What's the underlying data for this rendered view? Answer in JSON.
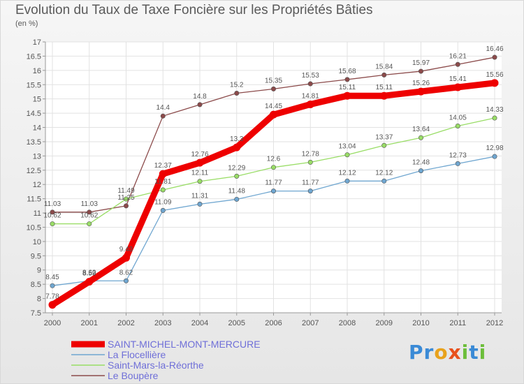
{
  "header": {
    "title": "Evolution du Taux de Taxe Foncière sur les Propriétés Bâties",
    "unit": "(en %)"
  },
  "logo": {
    "text": "Proxiti",
    "letters": [
      "P",
      "r",
      "o",
      "x",
      "i",
      "t",
      "i"
    ]
  },
  "chart_data": {
    "type": "line",
    "title": "Evolution du Taux de Taxe Foncière sur les Propriétés Bâties",
    "ylabel": "(en %)",
    "xlabel": "",
    "x": [
      "2000",
      "2001",
      "2002",
      "2003",
      "2004",
      "2005",
      "2006",
      "2007",
      "2008",
      "2009",
      "2010",
      "2011",
      "2012"
    ],
    "ylim": [
      7.5,
      17
    ],
    "yticks": [
      "7.5",
      "8",
      "8.5",
      "9",
      "9.5",
      "10",
      "10.5",
      "11",
      "11.5",
      "12",
      "12.5",
      "13",
      "13.5",
      "14",
      "14.5",
      "15",
      "15.5",
      "16",
      "16.5",
      "17"
    ],
    "grid": true,
    "legend_position": "bottom-left",
    "series": [
      {
        "name": "SAINT-MICHEL-MONT-MERCURE",
        "color": "#ee0000",
        "values": [
          7.78,
          8.59,
          9.43,
          12.37,
          12.76,
          13.3,
          14.45,
          14.81,
          15.11,
          15.11,
          15.26,
          15.41,
          15.56
        ],
        "labels": [
          "7.78",
          "8.59",
          "9.43",
          "12.37",
          "12.76",
          "13.3",
          "14.45",
          "14.81",
          "15.11",
          "15.11",
          "15.26",
          "15.41",
          "15.56"
        ]
      },
      {
        "name": "La Flocellière",
        "color": "#6fa6d0",
        "values": [
          8.45,
          8.62,
          8.62,
          11.09,
          11.31,
          11.48,
          11.77,
          11.77,
          12.12,
          12.12,
          12.48,
          12.73,
          12.98
        ],
        "labels": [
          "8.45",
          "8.62",
          "8.62",
          "11.09",
          "11.31",
          "11.48",
          "11.77",
          "11.77",
          "12.12",
          "12.12",
          "12.48",
          "12.73",
          "12.98"
        ]
      },
      {
        "name": "Saint-Mars-la-Réorthe",
        "color": "#99dd66",
        "values": [
          10.62,
          10.62,
          11.49,
          11.81,
          12.11,
          12.29,
          12.6,
          12.78,
          13.04,
          13.37,
          13.64,
          14.05,
          14.33
        ],
        "labels": [
          "10.62",
          "10.62",
          "11.49",
          "11.81",
          "12.11",
          "12.29",
          "12.6",
          "12.78",
          "13.04",
          "13.37",
          "13.64",
          "14.05",
          "14.33"
        ]
      },
      {
        "name": "Le Boupère",
        "color": "#8b4a4a",
        "values": [
          11.03,
          11.03,
          11.25,
          14.4,
          14.8,
          15.2,
          15.35,
          15.53,
          15.68,
          15.84,
          15.97,
          16.21,
          16.46
        ],
        "labels": [
          "11.03",
          "11.03",
          "11.25",
          "14.4",
          "14.8",
          "15.2",
          "15.35",
          "15.53",
          "15.68",
          "15.84",
          "15.97",
          "16.21",
          "16.46"
        ]
      }
    ]
  }
}
